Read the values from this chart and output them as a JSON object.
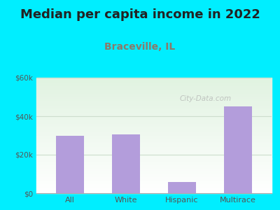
{
  "title": "Median per capita income in 2022",
  "subtitle": "Braceville, IL",
  "categories": [
    "All",
    "White",
    "Hispanic",
    "Multirace"
  ],
  "values": [
    30000,
    30500,
    6000,
    45000
  ],
  "bar_color": "#b39ddb",
  "background_color": "#00eeff",
  "title_fontsize": 13,
  "subtitle_fontsize": 10,
  "subtitle_color": "#8a7a6a",
  "title_color": "#222222",
  "tick_color": "#555555",
  "ylim": [
    0,
    60000
  ],
  "yticks": [
    0,
    20000,
    40000,
    60000
  ],
  "ytick_labels": [
    "$0",
    "$20k",
    "$40k",
    "$60k"
  ],
  "watermark": "City-Data.com",
  "grid_color": "#ccddcc"
}
